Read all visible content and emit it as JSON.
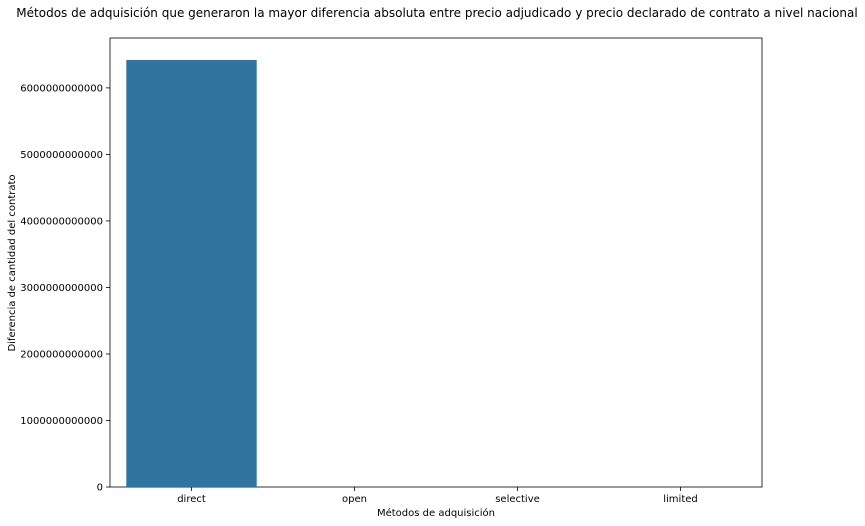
{
  "chart_data": {
    "type": "bar",
    "title": "Métodos de adquisición que generaron la mayor diferencia absoluta entre precio adjudicado y precio declarado de contrato a nivel nacional",
    "xlabel": "Métodos de adquisición",
    "ylabel": "Diferencia de cantidad del contrato",
    "categories": [
      "direct",
      "open",
      "selective",
      "limited"
    ],
    "values": [
      6420000000000,
      0,
      0,
      0
    ],
    "ylim": [
      0,
      6750000000000
    ],
    "yticks": [
      0,
      1000000000000,
      2000000000000,
      3000000000000,
      4000000000000,
      5000000000000,
      6000000000000
    ],
    "ytick_labels": [
      "0",
      "1000000000000",
      "2000000000000",
      "3000000000000",
      "4000000000000",
      "5000000000000",
      "6000000000000"
    ],
    "bar_color": "#3274a1",
    "grid": false,
    "legend": "none"
  }
}
